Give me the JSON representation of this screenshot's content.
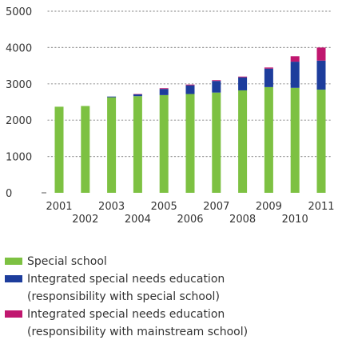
{
  "chart_data": {
    "type": "bar",
    "stacked": true,
    "categories": [
      "2001",
      "2002",
      "2003",
      "2004",
      "2005",
      "2006",
      "2007",
      "2008",
      "2009",
      "2010",
      "2011"
    ],
    "series": [
      {
        "name": "Special school",
        "color": "#7dc142",
        "values": [
          2370,
          2390,
          2630,
          2660,
          2690,
          2720,
          2760,
          2820,
          2910,
          2890,
          2840
        ]
      },
      {
        "name": "Integrated special needs education (responsibility with special school)",
        "color": "#1d3d9c",
        "values": [
          0,
          0,
          20,
          50,
          170,
          240,
          320,
          360,
          510,
          720,
          800
        ]
      },
      {
        "name": "Integrated special needs education (responsibility with mainstream school)",
        "color": "#c0176f",
        "values": [
          0,
          0,
          0,
          10,
          20,
          20,
          20,
          20,
          30,
          150,
          360
        ]
      }
    ],
    "yticks": [
      0,
      1000,
      2000,
      3000,
      4000,
      5000
    ],
    "ylim": [
      0,
      5000
    ],
    "grid": "dotted horizontal",
    "legend_position": "bottom"
  },
  "legend": [
    {
      "line1": "Special school",
      "line2": ""
    },
    {
      "line1": "Integrated special needs education",
      "line2": "(responsibility with special school)"
    },
    {
      "line1": "Integrated special needs education",
      "line2": "(responsibility with mainstream school)"
    }
  ]
}
